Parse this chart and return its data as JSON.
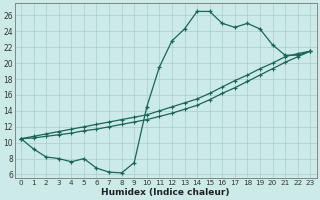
{
  "xlabel": "Humidex (Indice chaleur)",
  "bg_color": "#cceae8",
  "grid_color": "#aacccc",
  "line_color": "#1a6655",
  "xlim": [
    -0.5,
    23.5
  ],
  "ylim": [
    5.5,
    27.5
  ],
  "xticks": [
    0,
    1,
    2,
    3,
    4,
    5,
    6,
    7,
    8,
    9,
    10,
    11,
    12,
    13,
    14,
    15,
    16,
    17,
    18,
    19,
    20,
    21,
    22,
    23
  ],
  "yticks": [
    6,
    8,
    10,
    12,
    14,
    16,
    18,
    20,
    22,
    24,
    26
  ],
  "line1_x": [
    0,
    1,
    2,
    3,
    4,
    5,
    6,
    7,
    8,
    9,
    10,
    11,
    12,
    13,
    14,
    15,
    16,
    17,
    18,
    19,
    20,
    21,
    22,
    23
  ],
  "line1_y": [
    10.5,
    9.2,
    8.2,
    8.0,
    7.6,
    8.0,
    6.8,
    6.3,
    6.2,
    7.5,
    14.5,
    19.5,
    22.8,
    24.3,
    26.5,
    26.5,
    25.0,
    24.5,
    25.0,
    24.3,
    22.3,
    21.0,
    21.0,
    21.5
  ],
  "line2_x": [
    0,
    1,
    2,
    3,
    4,
    5,
    6,
    7,
    8,
    9,
    10,
    11,
    12,
    13,
    14,
    15,
    16,
    17,
    18,
    19,
    20,
    21,
    22,
    23
  ],
  "line2_y": [
    10.5,
    10.8,
    11.1,
    11.4,
    11.7,
    12.0,
    12.3,
    12.6,
    12.9,
    13.2,
    13.5,
    14.0,
    14.5,
    15.0,
    15.5,
    16.2,
    17.0,
    17.8,
    18.5,
    19.3,
    20.0,
    20.8,
    21.2,
    21.5
  ],
  "line3_x": [
    0,
    1,
    2,
    3,
    4,
    5,
    6,
    7,
    8,
    9,
    10,
    11,
    12,
    13,
    14,
    15,
    16,
    17,
    18,
    19,
    20,
    21,
    22,
    23
  ],
  "line3_y": [
    10.5,
    10.6,
    10.8,
    11.0,
    11.2,
    11.5,
    11.7,
    12.0,
    12.3,
    12.6,
    12.9,
    13.3,
    13.7,
    14.2,
    14.7,
    15.4,
    16.2,
    16.9,
    17.7,
    18.5,
    19.3,
    20.1,
    20.8,
    21.5
  ]
}
